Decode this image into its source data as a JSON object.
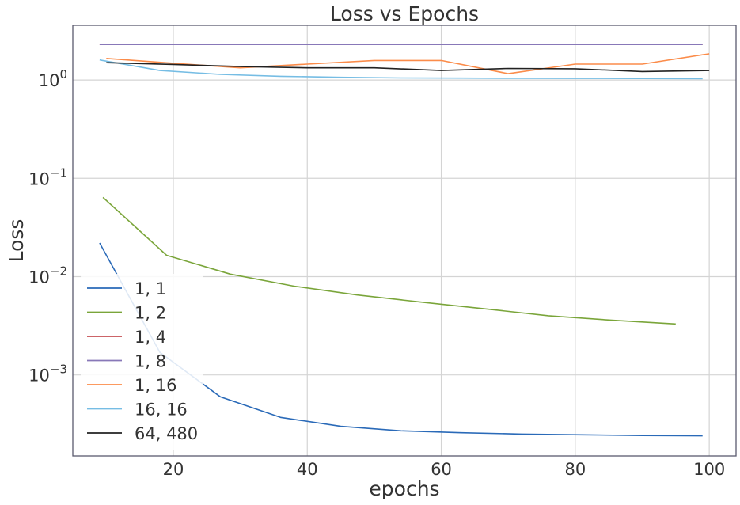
{
  "chart_data": {
    "type": "line",
    "title": "Loss vs Epochs",
    "xlabel": "epochs",
    "ylabel": "Loss",
    "xlim": [
      5,
      104
    ],
    "ylim": [
      0.00015,
      3.6
    ],
    "yscale": "log",
    "grid": true,
    "legend_position": "lower-left",
    "x_ticks": [
      {
        "value": 20,
        "label": "20"
      },
      {
        "value": 40,
        "label": "40"
      },
      {
        "value": 60,
        "label": "60"
      },
      {
        "value": 80,
        "label": "80"
      },
      {
        "value": 100,
        "label": "100"
      }
    ],
    "y_ticks": [
      {
        "value": 1,
        "base": "10",
        "exp": "0"
      },
      {
        "value": 0.1,
        "base": "10",
        "exp": "−1"
      },
      {
        "value": 0.01,
        "base": "10",
        "exp": "−2"
      },
      {
        "value": 0.001,
        "base": "10",
        "exp": "−3"
      }
    ],
    "series": [
      {
        "name": "1, 1",
        "color": "#2a6ab8",
        "x": [
          9,
          18,
          27,
          36,
          45,
          54,
          63,
          72,
          81,
          90,
          99
        ],
        "y": [
          0.022,
          0.0017,
          0.0006,
          0.00037,
          0.0003,
          0.00027,
          0.000258,
          0.00025,
          0.000246,
          0.000242,
          0.00024
        ]
      },
      {
        "name": "1, 2",
        "color": "#7aa53a",
        "x": [
          9.5,
          19,
          28.5,
          38,
          47.5,
          57,
          66.5,
          76,
          85.5,
          95
        ],
        "y": [
          0.064,
          0.0165,
          0.0106,
          0.008,
          0.0065,
          0.0055,
          0.0047,
          0.004,
          0.0036,
          0.0033
        ]
      },
      {
        "name": "1, 4",
        "color": "#c44e52",
        "x": [
          9,
          99
        ],
        "y": [
          2.3,
          2.3
        ]
      },
      {
        "name": "1, 8",
        "color": "#8878b8",
        "x": [
          9,
          99
        ],
        "y": [
          2.3,
          2.3
        ]
      },
      {
        "name": "1, 16",
        "color": "#fb8c4a",
        "x": [
          10,
          20,
          30,
          40,
          50,
          60,
          70,
          80,
          90,
          100
        ],
        "y": [
          1.66,
          1.48,
          1.33,
          1.45,
          1.58,
          1.58,
          1.16,
          1.45,
          1.45,
          1.85
        ]
      },
      {
        "name": "16, 16",
        "color": "#76bde4",
        "x": [
          9,
          18,
          27,
          36,
          45,
          54,
          63,
          72,
          81,
          90,
          99
        ],
        "y": [
          1.6,
          1.25,
          1.14,
          1.09,
          1.065,
          1.05,
          1.045,
          1.04,
          1.037,
          1.035,
          1.03
        ]
      },
      {
        "name": "64, 480",
        "color": "#222222",
        "x": [
          10,
          20,
          30,
          40,
          50,
          60,
          70,
          80,
          90,
          100
        ],
        "y": [
          1.5,
          1.44,
          1.37,
          1.33,
          1.33,
          1.25,
          1.31,
          1.3,
          1.22,
          1.25
        ]
      }
    ]
  }
}
